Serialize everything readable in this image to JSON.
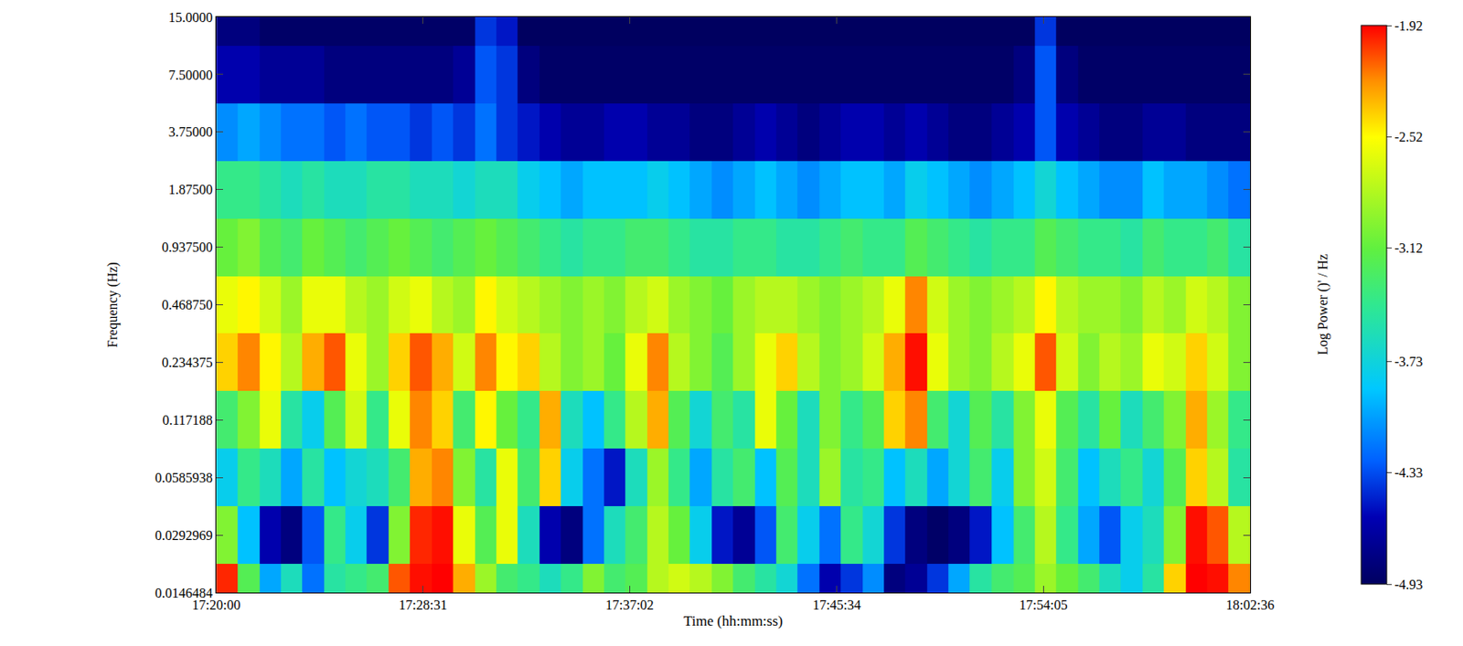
{
  "chart_data": {
    "type": "heatmap",
    "x_label": "Time (hh:mm:ss)",
    "y_label": "Frequency (Hz)",
    "log": "y",
    "x": [
      62427,
      62480,
      62533,
      62586,
      62640,
      62693,
      62746,
      62799,
      62853,
      62906,
      62959,
      63012,
      63066,
      63119,
      63172,
      63225,
      63279,
      63332,
      63385,
      63438,
      63492,
      63545,
      63598,
      63651,
      63705,
      63758,
      63811,
      63864,
      63918,
      63971,
      64024,
      64077,
      64131,
      64184,
      64237,
      64290,
      64344,
      64397,
      64450,
      64503,
      64557,
      64610,
      64663,
      64716,
      64770,
      64823,
      64876,
      64929
    ],
    "y": [
      0.0146484375,
      0.029296875,
      0.05859375,
      0.1171875,
      0.234375,
      0.46875,
      0.9375,
      1.875,
      3.75,
      7.5,
      15
    ],
    "z": [
      [
        -2.0,
        -3.2,
        -4.0,
        -3.6,
        -4.2,
        -3.5,
        -3.4,
        -3.3,
        -2.1,
        -1.95,
        -1.92,
        -2.3,
        -2.9,
        -3.3,
        -3.4,
        -3.6,
        -3.4,
        -3.0,
        -3.3,
        -3.2,
        -2.8,
        -2.7,
        -2.8,
        -3.0,
        -3.3,
        -3.5,
        -3.7,
        -4.2,
        -4.6,
        -4.4,
        -4.1,
        -4.8,
        -4.7,
        -4.4,
        -4.0,
        -3.5,
        -3.3,
        -3.2,
        -2.9,
        -3.1,
        -3.3,
        -3.6,
        -3.8,
        -3.5,
        -2.4,
        -1.92,
        -1.95,
        -2.2
      ],
      [
        -3.0,
        -3.9,
        -4.6,
        -4.8,
        -4.3,
        -3.4,
        -3.8,
        -4.4,
        -3.0,
        -2.0,
        -1.95,
        -2.6,
        -3.2,
        -2.6,
        -3.6,
        -4.6,
        -4.8,
        -4.2,
        -3.6,
        -3.3,
        -2.8,
        -3.1,
        -3.8,
        -4.5,
        -4.7,
        -4.3,
        -3.3,
        -3.8,
        -4.2,
        -3.4,
        -3.7,
        -4.4,
        -4.8,
        -4.9,
        -4.8,
        -4.5,
        -3.9,
        -3.3,
        -2.8,
        -3.4,
        -4.0,
        -4.3,
        -3.8,
        -3.6,
        -3.0,
        -1.95,
        -2.1,
        -2.8
      ],
      [
        -3.8,
        -3.4,
        -3.6,
        -4.0,
        -3.5,
        -3.9,
        -3.7,
        -3.6,
        -3.3,
        -2.3,
        -2.2,
        -3.0,
        -3.5,
        -2.6,
        -3.3,
        -2.4,
        -3.8,
        -4.2,
        -4.5,
        -3.6,
        -2.9,
        -3.4,
        -4.0,
        -3.5,
        -3.3,
        -3.9,
        -3.2,
        -3.6,
        -2.9,
        -3.5,
        -3.4,
        -3.9,
        -3.6,
        -4.0,
        -3.7,
        -3.3,
        -3.8,
        -3.0,
        -2.7,
        -3.3,
        -3.9,
        -3.6,
        -3.4,
        -3.7,
        -3.2,
        -2.4,
        -2.8,
        -3.5
      ],
      [
        -3.3,
        -3.0,
        -2.6,
        -3.5,
        -3.8,
        -3.2,
        -2.7,
        -3.4,
        -2.6,
        -2.2,
        -2.4,
        -3.3,
        -2.5,
        -3.1,
        -3.4,
        -2.3,
        -3.6,
        -3.9,
        -3.4,
        -2.8,
        -2.3,
        -3.2,
        -3.7,
        -3.3,
        -3.5,
        -2.6,
        -3.1,
        -3.6,
        -3.0,
        -3.4,
        -3.2,
        -2.4,
        -2.2,
        -3.3,
        -3.7,
        -3.2,
        -3.5,
        -3.0,
        -2.6,
        -3.2,
        -3.5,
        -3.1,
        -3.6,
        -3.3,
        -3.0,
        -2.3,
        -2.9,
        -3.4
      ],
      [
        -2.4,
        -2.2,
        -2.5,
        -2.8,
        -2.3,
        -2.1,
        -2.6,
        -2.9,
        -2.4,
        -2.1,
        -2.3,
        -2.7,
        -2.2,
        -2.5,
        -2.4,
        -2.8,
        -3.0,
        -2.9,
        -3.1,
        -2.6,
        -2.2,
        -2.8,
        -3.0,
        -3.2,
        -2.9,
        -2.6,
        -2.4,
        -2.8,
        -3.0,
        -2.9,
        -2.7,
        -2.3,
        -1.95,
        -2.6,
        -2.9,
        -3.0,
        -2.8,
        -2.6,
        -2.1,
        -2.7,
        -3.0,
        -2.8,
        -2.9,
        -2.6,
        -2.7,
        -2.4,
        -2.7,
        -3.0
      ],
      [
        -2.6,
        -2.5,
        -2.7,
        -2.9,
        -2.6,
        -2.6,
        -2.8,
        -2.9,
        -2.7,
        -2.6,
        -2.8,
        -2.9,
        -2.5,
        -2.7,
        -2.8,
        -2.9,
        -3.0,
        -2.9,
        -3.0,
        -2.8,
        -2.7,
        -2.9,
        -3.0,
        -3.1,
        -2.9,
        -2.8,
        -2.8,
        -2.9,
        -3.0,
        -2.9,
        -2.8,
        -2.6,
        -2.2,
        -2.7,
        -2.9,
        -3.0,
        -2.9,
        -2.8,
        -2.5,
        -2.8,
        -2.9,
        -2.9,
        -3.0,
        -2.8,
        -2.9,
        -2.7,
        -2.8,
        -3.0
      ],
      [
        -3.1,
        -3.0,
        -3.2,
        -3.3,
        -3.1,
        -3.2,
        -3.3,
        -3.2,
        -3.1,
        -3.2,
        -3.3,
        -3.2,
        -3.1,
        -3.2,
        -3.3,
        -3.4,
        -3.5,
        -3.4,
        -3.4,
        -3.3,
        -3.3,
        -3.4,
        -3.5,
        -3.5,
        -3.4,
        -3.4,
        -3.5,
        -3.5,
        -3.4,
        -3.3,
        -3.4,
        -3.4,
        -3.2,
        -3.3,
        -3.4,
        -3.5,
        -3.4,
        -3.4,
        -3.2,
        -3.3,
        -3.4,
        -3.4,
        -3.5,
        -3.3,
        -3.4,
        -3.4,
        -3.3,
        -3.5
      ],
      [
        -3.4,
        -3.4,
        -3.5,
        -3.6,
        -3.5,
        -3.6,
        -3.6,
        -3.5,
        -3.5,
        -3.6,
        -3.6,
        -3.7,
        -3.6,
        -3.6,
        -3.8,
        -3.9,
        -4.0,
        -3.9,
        -3.9,
        -3.9,
        -3.8,
        -3.9,
        -4.0,
        -4.1,
        -4.0,
        -3.9,
        -4.0,
        -4.1,
        -4.0,
        -3.9,
        -3.9,
        -4.0,
        -3.8,
        -3.9,
        -4.0,
        -4.1,
        -4.0,
        -3.9,
        -3.7,
        -3.9,
        -4.0,
        -4.1,
        -4.1,
        -3.9,
        -4.0,
        -4.0,
        -4.1,
        -4.2
      ],
      [
        -4.1,
        -4.0,
        -4.1,
        -4.2,
        -4.2,
        -4.3,
        -4.2,
        -4.3,
        -4.3,
        -4.4,
        -4.3,
        -4.4,
        -4.2,
        -4.4,
        -4.5,
        -4.6,
        -4.7,
        -4.7,
        -4.6,
        -4.6,
        -4.7,
        -4.7,
        -4.8,
        -4.8,
        -4.7,
        -4.6,
        -4.7,
        -4.8,
        -4.7,
        -4.6,
        -4.6,
        -4.7,
        -4.6,
        -4.7,
        -4.8,
        -4.8,
        -4.7,
        -4.6,
        -4.3,
        -4.6,
        -4.7,
        -4.8,
        -4.8,
        -4.7,
        -4.7,
        -4.8,
        -4.8,
        -4.8
      ],
      [
        -4.6,
        -4.6,
        -4.7,
        -4.7,
        -4.7,
        -4.8,
        -4.8,
        -4.8,
        -4.8,
        -4.8,
        -4.8,
        -4.7,
        -4.3,
        -4.4,
        -4.8,
        -4.9,
        -4.9,
        -4.9,
        -4.9,
        -4.9,
        -4.9,
        -4.9,
        -4.9,
        -4.9,
        -4.9,
        -4.9,
        -4.9,
        -4.9,
        -4.9,
        -4.9,
        -4.9,
        -4.9,
        -4.9,
        -4.9,
        -4.9,
        -4.9,
        -4.9,
        -4.8,
        -4.3,
        -4.8,
        -4.9,
        -4.9,
        -4.9,
        -4.9,
        -4.9,
        -4.9,
        -4.9,
        -4.9
      ],
      [
        -4.8,
        -4.8,
        -4.9,
        -4.9,
        -4.9,
        -4.9,
        -4.9,
        -4.9,
        -4.9,
        -4.9,
        -4.9,
        -4.9,
        -4.4,
        -4.5,
        -4.93,
        -4.93,
        -4.93,
        -4.93,
        -4.93,
        -4.93,
        -4.93,
        -4.93,
        -4.93,
        -4.93,
        -4.93,
        -4.93,
        -4.93,
        -4.93,
        -4.93,
        -4.93,
        -4.93,
        -4.93,
        -4.93,
        -4.93,
        -4.93,
        -4.93,
        -4.93,
        -4.93,
        -4.4,
        -4.93,
        -4.93,
        -4.93,
        -4.93,
        -4.93,
        -4.93,
        -4.93,
        -4.93,
        -4.93
      ]
    ],
    "xlim": [
      62400,
      64956
    ],
    "xticks": [
      {
        "value": 62400,
        "label": "17:20:00"
      },
      {
        "value": 62911,
        "label": "17:28:31"
      },
      {
        "value": 63422,
        "label": "17:37:02"
      },
      {
        "value": 63934,
        "label": "17:45:34"
      },
      {
        "value": 64445,
        "label": "17:54:05"
      },
      {
        "value": 64956,
        "label": "18:02:36"
      }
    ],
    "ylim": [
      0.0146484375,
      15
    ],
    "yticks": [
      {
        "value": 0.0146484375,
        "label": "0.0146484"
      },
      {
        "value": 0.029296875,
        "label": "0.0292969"
      },
      {
        "value": 0.05859375,
        "label": "0.0585938"
      },
      {
        "value": 0.1171875,
        "label": "0.117188"
      },
      {
        "value": 0.234375,
        "label": "0.234375"
      },
      {
        "value": 0.46875,
        "label": "0.468750"
      },
      {
        "value": 0.9375,
        "label": "0.937500"
      },
      {
        "value": 1.875,
        "label": "1.87500"
      },
      {
        "value": 3.75,
        "label": "3.75000"
      },
      {
        "value": 7.5,
        "label": "7.50000"
      },
      {
        "value": 15,
        "label": "15.0000"
      }
    ],
    "colorbar_label": "Log Power ()' / Hz",
    "colorbar_range": [
      -4.93,
      -1.92
    ],
    "colorbar_ticks": [
      -1.92,
      -2.52,
      -3.12,
      -3.73,
      -4.33,
      -4.93
    ]
  }
}
